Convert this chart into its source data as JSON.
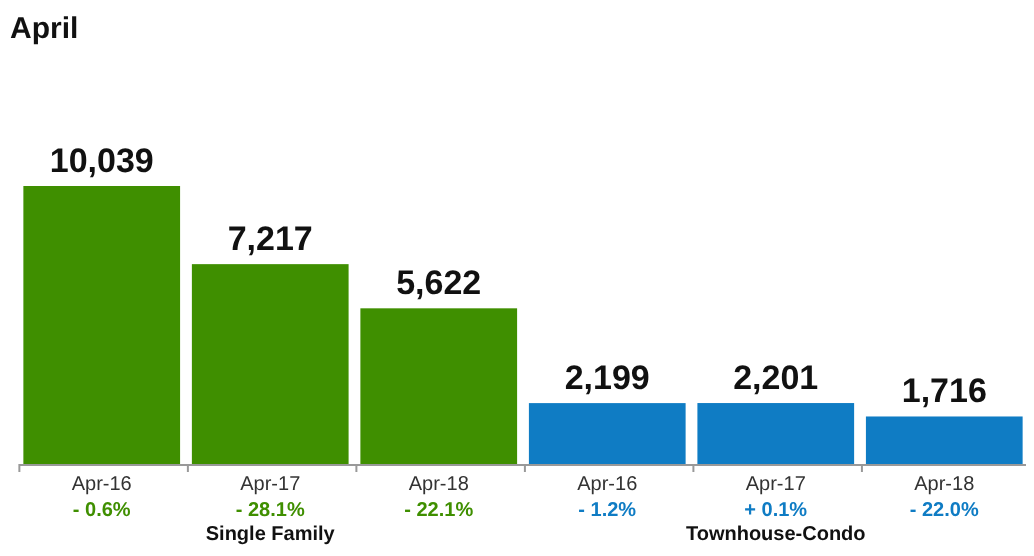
{
  "chart_data": {
    "type": "bar",
    "title": "April",
    "categories": [
      "Apr-16",
      "Apr-17",
      "Apr-18",
      "Apr-16",
      "Apr-17",
      "Apr-18"
    ],
    "values": [
      10039,
      7217,
      5622,
      2199,
      2201,
      1716
    ],
    "colors": [
      "#3f8f00",
      "#3f8f00",
      "#3f8f00",
      "#0f7cc4",
      "#0f7cc4",
      "#0f7cc4"
    ],
    "value_labels": [
      "10,039",
      "7,217",
      "5,622",
      "2,199",
      "2,201",
      "1,716"
    ],
    "annotations": [
      "- 0.6%",
      "- 28.1%",
      "- 22.1%",
      "- 1.2%",
      "+ 0.1%",
      "- 22.0%",
      "Single Family",
      "Townhouse-Condo"
    ]
  }
}
